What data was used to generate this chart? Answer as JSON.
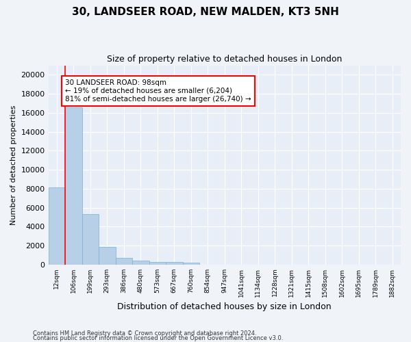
{
  "title_line1": "30, LANDSEER ROAD, NEW MALDEN, KT3 5NH",
  "title_line2": "Size of property relative to detached houses in London",
  "xlabel": "Distribution of detached houses by size in London",
  "ylabel": "Number of detached properties",
  "bar_color": "#b8cfe8",
  "bar_edge_color": "#7aafd4",
  "background_color": "#e8eef8",
  "fig_background_color": "#f0f4f8",
  "grid_color": "#ffffff",
  "categories": [
    "12sqm",
    "106sqm",
    "199sqm",
    "293sqm",
    "386sqm",
    "480sqm",
    "573sqm",
    "667sqm",
    "760sqm",
    "854sqm",
    "947sqm",
    "1041sqm",
    "1134sqm",
    "1228sqm",
    "1321sqm",
    "1415sqm",
    "1508sqm",
    "1602sqm",
    "1695sqm",
    "1789sqm",
    "1882sqm"
  ],
  "values": [
    8100,
    16600,
    5300,
    1850,
    700,
    380,
    280,
    230,
    200,
    0,
    0,
    0,
    0,
    0,
    0,
    0,
    0,
    0,
    0,
    0,
    0
  ],
  "annotation_box_text": "30 LANDSEER ROAD: 98sqm\n← 19% of detached houses are smaller (6,204)\n81% of semi-detached houses are larger (26,740) →",
  "property_line_x": 0.5,
  "ylim": [
    0,
    21000
  ],
  "yticks": [
    0,
    2000,
    4000,
    6000,
    8000,
    10000,
    12000,
    14000,
    16000,
    18000,
    20000
  ],
  "footer_line1": "Contains HM Land Registry data © Crown copyright and database right 2024.",
  "footer_line2": "Contains public sector information licensed under the Open Government Licence v3.0."
}
